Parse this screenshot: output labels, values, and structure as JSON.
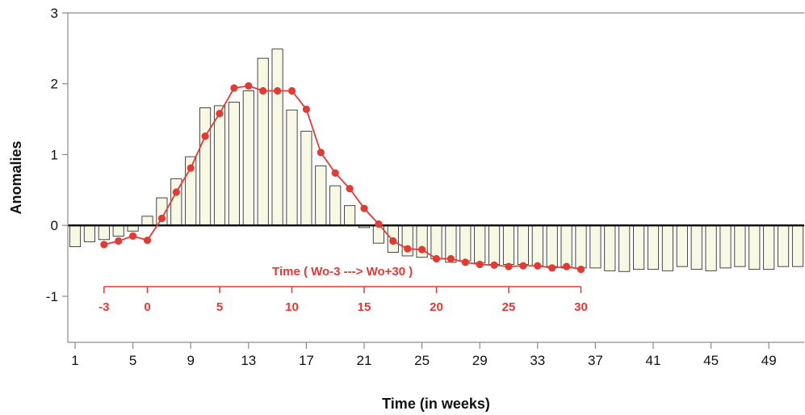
{
  "chart_data": {
    "type": "bar",
    "title": "",
    "xlabel": "Time (in weeks)",
    "ylabel": "Anomalies",
    "xlim": [
      0.5,
      53
    ],
    "ylim": [
      -1.65,
      3
    ],
    "x_ticks": [
      1,
      5,
      9,
      13,
      17,
      21,
      25,
      29,
      33,
      37,
      41,
      45,
      49
    ],
    "y_ticks": [
      -1,
      0,
      1,
      2,
      3
    ],
    "grid": false,
    "colors": {
      "bar_fill": "#f7f9e4",
      "bar_stroke": "#333333",
      "line": "#e23b36",
      "axis": "#8a8a8a",
      "zero_line": "#000000"
    },
    "bars": {
      "x": [
        1,
        2,
        3,
        4,
        5,
        6,
        7,
        8,
        9,
        10,
        11,
        12,
        13,
        14,
        15,
        16,
        17,
        18,
        19,
        20,
        21,
        22,
        23,
        24,
        25,
        26,
        27,
        28,
        29,
        30,
        31,
        32,
        33,
        34,
        35,
        36,
        37,
        38,
        39,
        40,
        41,
        42,
        43,
        44,
        45,
        46,
        47,
        48,
        49,
        50,
        51,
        52
      ],
      "values": [
        -0.3,
        -0.23,
        -0.2,
        -0.15,
        -0.08,
        0.13,
        0.39,
        0.66,
        0.97,
        1.66,
        1.69,
        1.74,
        1.9,
        2.36,
        2.49,
        1.63,
        1.33,
        0.84,
        0.56,
        0.28,
        -0.03,
        -0.25,
        -0.38,
        -0.43,
        -0.45,
        -0.47,
        -0.52,
        -0.5,
        -0.53,
        -0.55,
        -0.55,
        -0.55,
        -0.57,
        -0.58,
        -0.6,
        -0.6,
        -0.6,
        -0.64,
        -0.65,
        -0.62,
        -0.62,
        -0.64,
        -0.58,
        -0.62,
        -0.64,
        -0.6,
        -0.58,
        -0.62,
        -0.62,
        -0.58,
        -0.58,
        -0.58
      ]
    },
    "series": [
      {
        "x": [
          3,
          4,
          5,
          6,
          7,
          8,
          9,
          10,
          11,
          12,
          13,
          14,
          15,
          16,
          17,
          18,
          19,
          20,
          21,
          22,
          23,
          24,
          25,
          26,
          27,
          28,
          29,
          30,
          31,
          32,
          33,
          34,
          35,
          36
        ],
        "values": [
          -0.27,
          -0.22,
          -0.15,
          -0.21,
          0.1,
          0.47,
          0.81,
          1.26,
          1.58,
          1.94,
          1.97,
          1.9,
          1.9,
          1.9,
          1.64,
          1.03,
          0.74,
          0.52,
          0.24,
          0.02,
          -0.22,
          -0.33,
          -0.34,
          -0.47,
          -0.47,
          -0.52,
          -0.55,
          -0.56,
          -0.58,
          -0.57,
          -0.57,
          -0.6,
          -0.58,
          -0.62
        ]
      }
    ],
    "secondary_axis": {
      "title": "Time ( Wo-3 ---> Wo+30 )",
      "ticks": [
        {
          "x": 3,
          "label": "-3"
        },
        {
          "x": 6,
          "label": "0"
        },
        {
          "x": 11,
          "label": "5"
        },
        {
          "x": 16,
          "label": "10"
        },
        {
          "x": 21,
          "label": "15"
        },
        {
          "x": 26,
          "label": "20"
        },
        {
          "x": 31,
          "label": "25"
        },
        {
          "x": 36,
          "label": "30"
        }
      ],
      "range_x": [
        3,
        36
      ]
    }
  }
}
